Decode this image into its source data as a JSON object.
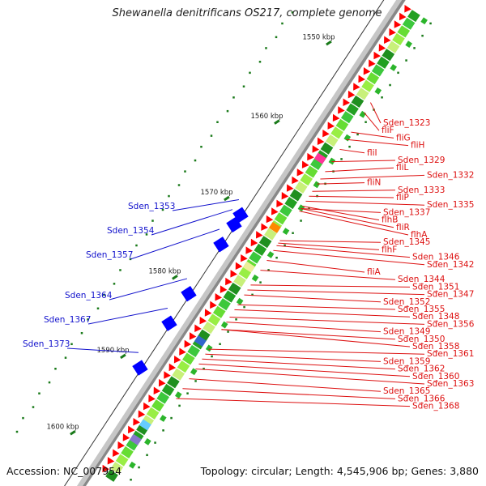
{
  "title": "Shewanella denitrificans OS217, complete genome",
  "footer": {
    "accession": "Accession: NC_007954",
    "summary": "Topology: circular; Length: 4,545,906 bp; Genes: 3,880"
  },
  "colors": {
    "backbone": "#b8b8b8",
    "forward_label": "#dd1111",
    "reverse_label": "#1111cc",
    "cds_forward": "#ff0000",
    "cds_reverse": "#0000ff",
    "gc_track": "#2bb52b",
    "tick": "#1a7a1a"
  },
  "kbp_marks": [
    {
      "label": "1550 kbp",
      "pos": 0.135
    },
    {
      "label": "1560 kbp",
      "pos": 0.295
    },
    {
      "label": "1570 kbp",
      "pos": 0.45
    },
    {
      "label": "1580 kbp",
      "pos": 0.61
    },
    {
      "label": "1590 kbp",
      "pos": 0.77
    },
    {
      "label": "1600 kbp",
      "pos": 0.925
    }
  ],
  "forward_labels": [
    {
      "text": "Sden_1323",
      "pos": 0.18
    },
    {
      "text": "fliF",
      "pos": 0.2
    },
    {
      "text": "fliG",
      "pos": 0.24
    },
    {
      "text": "fliH",
      "pos": 0.255
    },
    {
      "text": "fliI",
      "pos": 0.275
    },
    {
      "text": "Sden_1329",
      "pos": 0.3
    },
    {
      "text": "fliL",
      "pos": 0.32
    },
    {
      "text": "Sden_1332",
      "pos": 0.335
    },
    {
      "text": "fliN",
      "pos": 0.345
    },
    {
      "text": "Sden_1333",
      "pos": 0.36
    },
    {
      "text": "fliP",
      "pos": 0.37
    },
    {
      "text": "Sden_1335",
      "pos": 0.38
    },
    {
      "text": "Sden_1337",
      "pos": 0.395
    },
    {
      "text": "flhB",
      "pos": 0.39
    },
    {
      "text": "fliR",
      "pos": 0.395
    },
    {
      "text": "flhA",
      "pos": 0.4
    },
    {
      "text": "Sden_1345",
      "pos": 0.46
    },
    {
      "text": "flhF",
      "pos": 0.465
    },
    {
      "text": "Sden_1346",
      "pos": 0.47
    },
    {
      "text": "Sden_1342",
      "pos": 0.48
    },
    {
      "text": "fliA",
      "pos": 0.5
    },
    {
      "text": "Sden_1344",
      "pos": 0.52
    },
    {
      "text": "Sden_1351",
      "pos": 0.55
    },
    {
      "text": "Sden_1347",
      "pos": 0.56
    },
    {
      "text": "Sden_1352",
      "pos": 0.57
    },
    {
      "text": "Sden_1355",
      "pos": 0.59
    },
    {
      "text": "Sden_1348",
      "pos": 0.6
    },
    {
      "text": "Sden_1356",
      "pos": 0.615
    },
    {
      "text": "Sden_1349",
      "pos": 0.625
    },
    {
      "text": "Sden_1350",
      "pos": 0.64
    },
    {
      "text": "Sden_1358",
      "pos": 0.64
    },
    {
      "text": "Sden_1361",
      "pos": 0.68
    },
    {
      "text": "Sden_1359",
      "pos": 0.69
    },
    {
      "text": "Sden_1362",
      "pos": 0.7
    },
    {
      "text": "Sden_1360",
      "pos": 0.71
    },
    {
      "text": "Sden_1363",
      "pos": 0.72
    },
    {
      "text": "Sden_1365",
      "pos": 0.74
    },
    {
      "text": "Sden_1366",
      "pos": 0.76
    },
    {
      "text": "Sden_1368",
      "pos": 0.78
    }
  ],
  "reverse_labels": [
    {
      "text": "Sden_1353",
      "pos": 0.44
    },
    {
      "text": "Sden_1354",
      "pos": 0.46
    },
    {
      "text": "Sden_1357",
      "pos": 0.5
    },
    {
      "text": "Sden_1364",
      "pos": 0.6
    },
    {
      "text": "Sden_1367",
      "pos": 0.66
    },
    {
      "text": "Sden_1373",
      "pos": 0.75
    }
  ]
}
